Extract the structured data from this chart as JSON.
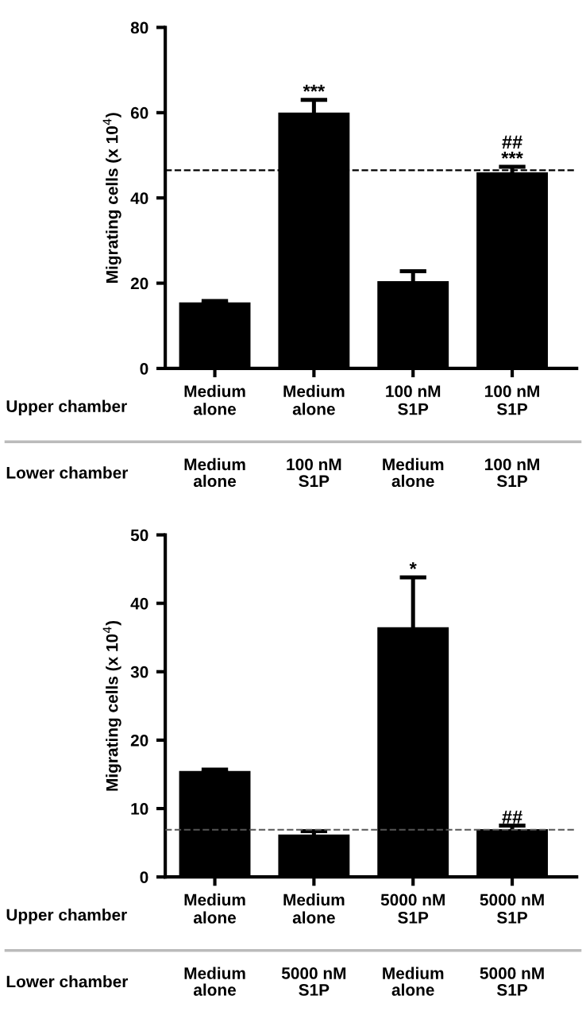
{
  "chart_data": [
    {
      "type": "bar",
      "ylabel": "Migrating cells (x 10$^{4}$)",
      "categories": [
        "Medium\nalone",
        "Medium\nalone",
        "100 nM\nS1P",
        "100 nM\nS1P"
      ],
      "color": "#000000",
      "values": [
        15.5,
        60,
        20.5,
        46
      ],
      "errors": [
        0.3,
        3,
        2.3,
        1.3
      ],
      "value_labels": [
        null,
        "***",
        null,
        "##\n***"
      ],
      "ylim": [
        0,
        80
      ],
      "yticks": [
        0,
        20,
        40,
        60,
        80
      ],
      "ref_lines": [
        {
          "axis": "y",
          "value": 46.5,
          "label": null,
          "color": "#000000",
          "line_style": "dashed"
        }
      ],
      "annotations": [
        "Upper chamber",
        "Lower chamber",
        "Medium\nalone",
        "100 nM\nS1P",
        "Medium\nalone",
        "100 nM\nS1P"
      ]
    },
    {
      "type": "bar",
      "ylabel": "Migrating cells (x 10$^{4}$)",
      "categories": [
        "Medium\nalone",
        "Medium\nalone",
        "5000 nM\nS1P",
        "5000 nM\nS1P"
      ],
      "color": "#000000",
      "values": [
        15.5,
        6.2,
        36.5,
        7
      ],
      "errors": [
        0.2,
        0.5,
        7.3,
        0.5
      ],
      "value_labels": [
        null,
        null,
        "*",
        "##"
      ],
      "ylim": [
        0,
        50
      ],
      "yticks": [
        0,
        10,
        20,
        30,
        40,
        50
      ],
      "ref_lines": [
        {
          "axis": "y",
          "value": 6.9,
          "label": null,
          "color": "#555555",
          "line_style": "dashed"
        }
      ],
      "annotations": [
        "Upper chamber",
        "Lower chamber",
        "Medium\nalone",
        "5000 nM\nS1P",
        "Medium\nalone",
        "5000 nM\nS1P"
      ]
    }
  ]
}
